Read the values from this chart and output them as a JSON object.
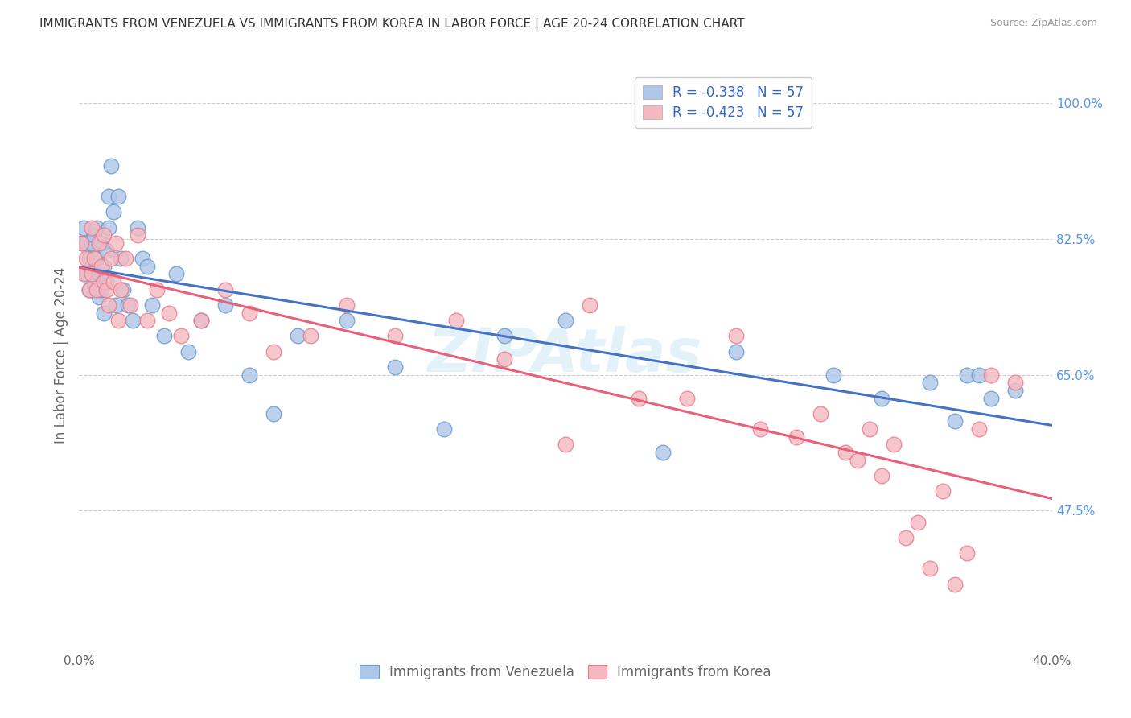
{
  "title": "IMMIGRANTS FROM VENEZUELA VS IMMIGRANTS FROM KOREA IN LABOR FORCE | AGE 20-24 CORRELATION CHART",
  "source": "Source: ZipAtlas.com",
  "ylabel": "In Labor Force | Age 20-24",
  "xlim": [
    0.0,
    0.4
  ],
  "ylim": [
    0.3,
    1.05
  ],
  "yticks": [
    0.475,
    0.65,
    0.825,
    1.0
  ],
  "ytick_labels": [
    "47.5%",
    "65.0%",
    "82.5%",
    "100.0%"
  ],
  "xticks": [
    0.0,
    0.1,
    0.2,
    0.3,
    0.4
  ],
  "xtick_labels": [
    "0.0%",
    "",
    "",
    "",
    "40.0%"
  ],
  "legend_entries": [
    {
      "label": "R = -0.338   N = 57",
      "color": "#aec6e8"
    },
    {
      "label": "R = -0.423   N = 57",
      "color": "#f4b8c1"
    }
  ],
  "bottom_legend": [
    {
      "label": "Immigrants from Venezuela",
      "color": "#aec6e8"
    },
    {
      "label": "Immigrants from Korea",
      "color": "#f4b8c1"
    }
  ],
  "watermark": "ZIPAtlas",
  "venezuela_color": "#aec6e8",
  "korea_color": "#f4b8c1",
  "venezuela_edge": "#6699cc",
  "korea_edge": "#e87a8a",
  "line_venezuela": "#4472c4",
  "line_korea": "#e8607a",
  "grid_color": "#cccccc",
  "venezuela_x": [
    0.001,
    0.002,
    0.003,
    0.003,
    0.004,
    0.004,
    0.005,
    0.005,
    0.006,
    0.006,
    0.007,
    0.007,
    0.008,
    0.008,
    0.009,
    0.009,
    0.01,
    0.01,
    0.011,
    0.011,
    0.012,
    0.012,
    0.013,
    0.014,
    0.015,
    0.016,
    0.017,
    0.018,
    0.02,
    0.022,
    0.024,
    0.026,
    0.028,
    0.03,
    0.035,
    0.04,
    0.045,
    0.05,
    0.06,
    0.07,
    0.08,
    0.09,
    0.11,
    0.13,
    0.15,
    0.175,
    0.2,
    0.24,
    0.27,
    0.31,
    0.33,
    0.35,
    0.36,
    0.365,
    0.37,
    0.375,
    0.385
  ],
  "venezuela_y": [
    0.82,
    0.84,
    0.82,
    0.78,
    0.8,
    0.76,
    0.82,
    0.79,
    0.83,
    0.77,
    0.8,
    0.84,
    0.78,
    0.75,
    0.82,
    0.76,
    0.79,
    0.73,
    0.81,
    0.77,
    0.88,
    0.84,
    0.92,
    0.86,
    0.74,
    0.88,
    0.8,
    0.76,
    0.74,
    0.72,
    0.84,
    0.8,
    0.79,
    0.74,
    0.7,
    0.78,
    0.68,
    0.72,
    0.74,
    0.65,
    0.6,
    0.7,
    0.72,
    0.66,
    0.58,
    0.7,
    0.72,
    0.55,
    0.68,
    0.65,
    0.62,
    0.64,
    0.59,
    0.65,
    0.65,
    0.62,
    0.63
  ],
  "korea_x": [
    0.001,
    0.002,
    0.003,
    0.004,
    0.005,
    0.005,
    0.006,
    0.007,
    0.008,
    0.009,
    0.01,
    0.01,
    0.011,
    0.012,
    0.013,
    0.014,
    0.015,
    0.016,
    0.017,
    0.019,
    0.021,
    0.024,
    0.028,
    0.032,
    0.037,
    0.042,
    0.05,
    0.06,
    0.07,
    0.08,
    0.095,
    0.11,
    0.13,
    0.155,
    0.175,
    0.2,
    0.21,
    0.23,
    0.25,
    0.27,
    0.28,
    0.295,
    0.305,
    0.315,
    0.32,
    0.325,
    0.33,
    0.335,
    0.34,
    0.345,
    0.35,
    0.355,
    0.36,
    0.365,
    0.37,
    0.375,
    0.385
  ],
  "korea_y": [
    0.82,
    0.78,
    0.8,
    0.76,
    0.84,
    0.78,
    0.8,
    0.76,
    0.82,
    0.79,
    0.77,
    0.83,
    0.76,
    0.74,
    0.8,
    0.77,
    0.82,
    0.72,
    0.76,
    0.8,
    0.74,
    0.83,
    0.72,
    0.76,
    0.73,
    0.7,
    0.72,
    0.76,
    0.73,
    0.68,
    0.7,
    0.74,
    0.7,
    0.72,
    0.67,
    0.56,
    0.74,
    0.62,
    0.62,
    0.7,
    0.58,
    0.57,
    0.6,
    0.55,
    0.54,
    0.58,
    0.52,
    0.56,
    0.44,
    0.46,
    0.4,
    0.5,
    0.38,
    0.42,
    0.58,
    0.65,
    0.64
  ]
}
